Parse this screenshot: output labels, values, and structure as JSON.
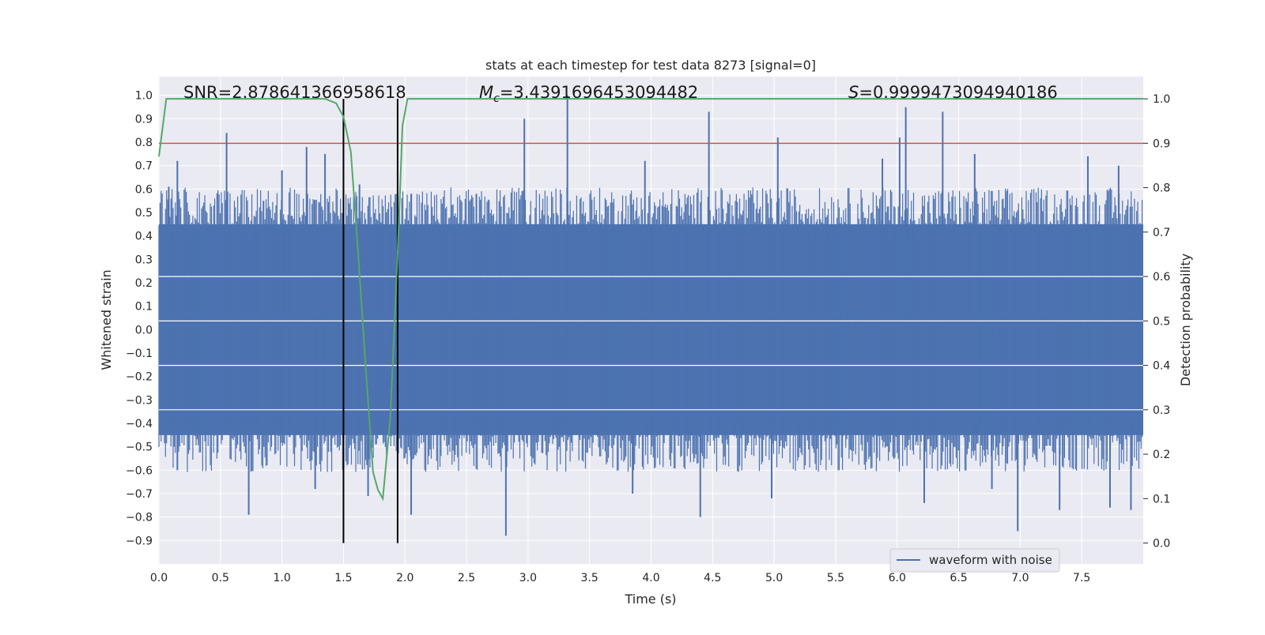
{
  "chart_data": {
    "type": "line",
    "title": "stats at each timestep for test data 8273 [signal=0]",
    "xlabel": "Time (s)",
    "ylabel": "Whitened strain",
    "y2label": "Detection probability",
    "xlim": [
      0.0,
      8.0
    ],
    "ylim": [
      -1.0,
      1.08
    ],
    "y2lim": [
      -0.047,
      1.05
    ],
    "x_ticks": [
      "0.0",
      "0.5",
      "1.0",
      "1.5",
      "2.0",
      "2.5",
      "3.0",
      "3.5",
      "4.0",
      "4.5",
      "5.0",
      "5.5",
      "6.0",
      "6.5",
      "7.0",
      "7.5"
    ],
    "y_ticks": [
      "1.0",
      "0.9",
      "0.8",
      "0.7",
      "0.6",
      "0.5",
      "0.4",
      "0.3",
      "0.2",
      "0.1",
      "0.0",
      "−0.1",
      "−0.2",
      "−0.3",
      "−0.4",
      "−0.5",
      "−0.6",
      "−0.7",
      "−0.8",
      "−0.9"
    ],
    "y2_ticks": [
      "1.0",
      "0.9",
      "0.8",
      "0.7",
      "0.6",
      "0.5",
      "0.4",
      "0.3",
      "0.2",
      "0.1",
      "0.0"
    ],
    "grid": true,
    "legend_position": "bottom-right",
    "annotations": {
      "snr": "SNR=2.878641366958618",
      "mc_symbol": "M",
      "mc_sub": "c",
      "mc_value": "=3.4391696453094482",
      "s_symbol": "S",
      "s_value": "=0.9999473094940186"
    },
    "colors": {
      "background": "#eaeaf2",
      "waveform": "#4c72b0",
      "probability": "#55a868",
      "threshold": "#c44e52",
      "markers": "#000000",
      "grid": "#ffffff"
    },
    "series": [
      {
        "name": "waveform with noise",
        "axis": "left",
        "kind": "dense-noise",
        "sample_rate_hz": 512,
        "typical_envelope": [
          -0.45,
          0.45
        ],
        "peaks_positive": [
          [
            0.08,
            0.61
          ],
          [
            0.15,
            0.72
          ],
          [
            0.55,
            0.84
          ],
          [
            0.85,
            0.55
          ],
          [
            1.0,
            0.68
          ],
          [
            1.2,
            0.78
          ],
          [
            1.35,
            0.75
          ],
          [
            1.63,
            0.62
          ],
          [
            2.05,
            0.58
          ],
          [
            2.58,
            0.58
          ],
          [
            2.97,
            0.9
          ],
          [
            3.32,
            1.0
          ],
          [
            3.95,
            0.72
          ],
          [
            4.47,
            0.93
          ],
          [
            5.03,
            0.82
          ],
          [
            5.88,
            0.73
          ],
          [
            6.02,
            0.82
          ],
          [
            6.07,
            0.95
          ],
          [
            6.37,
            0.93
          ],
          [
            6.63,
            0.75
          ],
          [
            7.55,
            0.74
          ],
          [
            7.8,
            0.7
          ]
        ],
        "peaks_negative": [
          [
            0.15,
            -0.6
          ],
          [
            0.73,
            -0.79
          ],
          [
            1.27,
            -0.68
          ],
          [
            1.7,
            -0.71
          ],
          [
            2.05,
            -0.79
          ],
          [
            2.82,
            -0.88
          ],
          [
            3.85,
            -0.7
          ],
          [
            4.4,
            -0.8
          ],
          [
            4.98,
            -0.72
          ],
          [
            6.22,
            -0.74
          ],
          [
            6.77,
            -0.68
          ],
          [
            6.98,
            -0.86
          ],
          [
            7.32,
            -0.77
          ],
          [
            7.73,
            -0.76
          ],
          [
            7.9,
            -0.77
          ]
        ]
      },
      {
        "name": "",
        "axis": "right",
        "kind": "detection-probability",
        "x": [
          0.0,
          0.06,
          0.12,
          0.2,
          0.4,
          0.6,
          0.8,
          1.0,
          1.2,
          1.35,
          1.44,
          1.5,
          1.56,
          1.62,
          1.68,
          1.74,
          1.78,
          1.82,
          1.88,
          1.94,
          1.98,
          2.02,
          2.08,
          2.2,
          3.0,
          4.0,
          5.0,
          6.0,
          7.0,
          8.0
        ],
        "y": [
          0.87,
          1.0,
          1.0,
          1.0,
          1.0,
          1.0,
          1.0,
          1.0,
          1.0,
          1.0,
          0.99,
          0.96,
          0.88,
          0.65,
          0.4,
          0.16,
          0.12,
          0.1,
          0.28,
          0.65,
          0.94,
          1.0,
          1.0,
          1.0,
          1.0,
          1.0,
          1.0,
          1.0,
          1.0,
          1.0
        ]
      },
      {
        "name": "",
        "axis": "right",
        "kind": "threshold",
        "y": 0.9
      }
    ],
    "vertical_lines_x": [
      1.5,
      1.94
    ]
  }
}
